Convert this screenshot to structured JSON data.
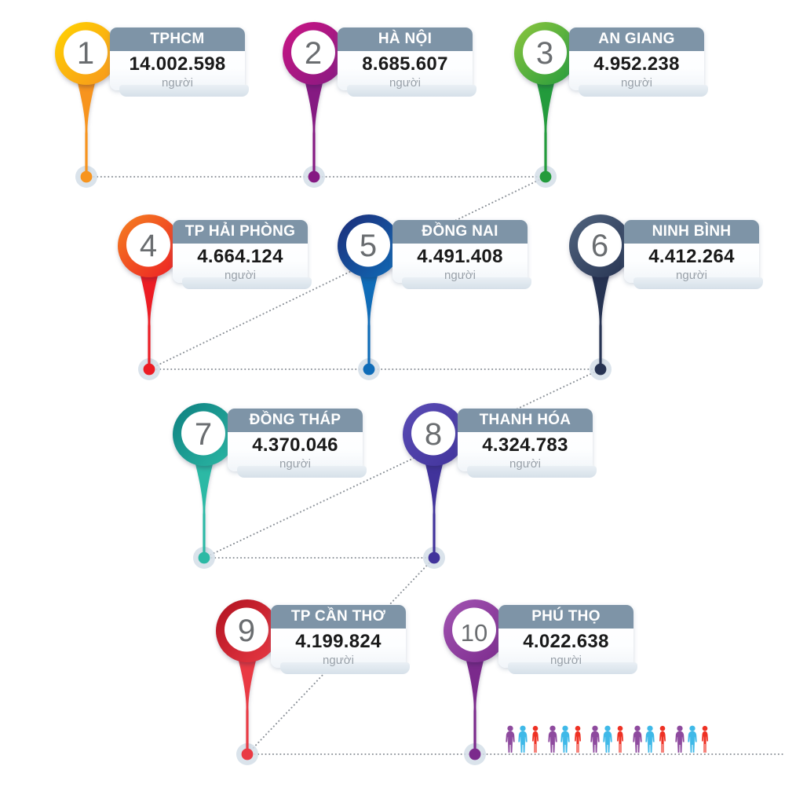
{
  "infographic": {
    "unit_label": "người",
    "items": [
      {
        "rank": "1",
        "name": "TPHCM",
        "value": "14.002.598",
        "color_from": "#ffd400",
        "color_to": "#f7941e"
      },
      {
        "rank": "2",
        "name": "HÀ NỘI",
        "value": "8.685.607",
        "color_from": "#cb1584",
        "color_to": "#851a82"
      },
      {
        "rank": "3",
        "name": "AN GIANG",
        "value": "4.952.238",
        "color_from": "#8dc63f",
        "color_to": "#239b3c"
      },
      {
        "rank": "4",
        "name": "TP HẢI PHÒNG",
        "value": "4.664.124",
        "color_from": "#f58220",
        "color_to": "#ec1c24"
      },
      {
        "rank": "5",
        "name": "ĐỒNG NAI",
        "value": "4.491.408",
        "color_from": "#1d2c78",
        "color_to": "#0f6cb8"
      },
      {
        "rank": "6",
        "name": "NINH BÌNH",
        "value": "4.412.264",
        "color_from": "#51647e",
        "color_to": "#263352"
      },
      {
        "rank": "7",
        "name": "ĐỒNG THÁP",
        "value": "4.370.046",
        "color_from": "#0e7f80",
        "color_to": "#2cb9a5"
      },
      {
        "rank": "8",
        "name": "THANH HÓA",
        "value": "4.324.783",
        "color_from": "#5a4cb5",
        "color_to": "#41339b"
      },
      {
        "rank": "9",
        "name": "TP CẦN THƠ",
        "value": "4.199.824",
        "color_from": "#b01220",
        "color_to": "#e93a44"
      },
      {
        "rank": "10",
        "name": "PHÚ THỌ",
        "value": "4.022.638",
        "color_from": "#a254b2",
        "color_to": "#7b2a8c"
      }
    ],
    "colors": {
      "header_bar": "#7e94a7",
      "value_text": "#1a1a1a",
      "unit_text": "#98a0a8",
      "rank_text": "#6a6d70",
      "dotted_line": "#8a9097",
      "halo": "#d3dee8"
    },
    "people": {
      "count": 15,
      "colors": [
        "#8e4a9e",
        "#3fb9e8",
        "#ee3124"
      ]
    }
  },
  "chart_data": {
    "type": "bar",
    "title": "",
    "categories": [
      "TPHCM",
      "HÀ NỘI",
      "AN GIANG",
      "TP HẢI PHÒNG",
      "ĐỒNG NAI",
      "NINH BÌNH",
      "ĐỒNG THÁP",
      "THANH HÓA",
      "TP CẦN THƠ",
      "PHÚ THỌ"
    ],
    "ranks": [
      1,
      2,
      3,
      4,
      5,
      6,
      7,
      8,
      9,
      10
    ],
    "values": [
      14002598,
      8685607,
      4952238,
      4664124,
      4491408,
      4412264,
      4370046,
      4324783,
      4199824,
      4022638
    ],
    "unit": "người",
    "legend_position": "none",
    "grid": false
  }
}
